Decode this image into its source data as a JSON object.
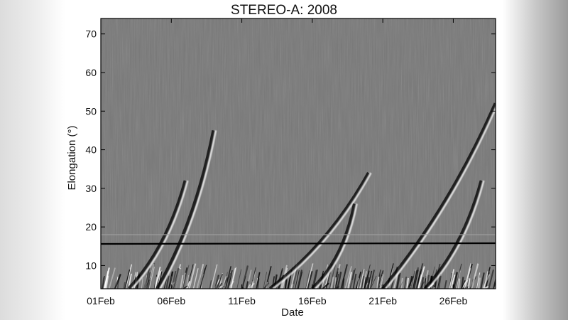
{
  "chart_data": {
    "type": "heatmap",
    "title": "STEREO-A: 2008",
    "xlabel": "Date",
    "ylabel": "Elongation (°)",
    "x_range": [
      "2008-02-01",
      "2008-02-29"
    ],
    "x_ticks": [
      {
        "date": "2008-02-01",
        "label": "01Feb"
      },
      {
        "date": "2008-02-06",
        "label": "06Feb"
      },
      {
        "date": "2008-02-11",
        "label": "11Feb"
      },
      {
        "date": "2008-02-16",
        "label": "16Feb"
      },
      {
        "date": "2008-02-21",
        "label": "21Feb"
      },
      {
        "date": "2008-02-26",
        "label": "26Feb"
      }
    ],
    "ylim": [
      4,
      74
    ],
    "y_ticks": [
      10,
      20,
      30,
      40,
      50,
      60,
      70
    ],
    "reference_line": {
      "elongation": 15.7,
      "color": "#000000"
    },
    "field_boundary_elongation": 18,
    "colormap": "grayscale",
    "colors": {
      "background": "#777777",
      "bright": "#ffffff",
      "dark": "#000000"
    },
    "tracks": [
      {
        "start_date": "2008-02-03",
        "end_date": "2008-02-07",
        "start_elongation": 4,
        "end_elongation": 32
      },
      {
        "start_date": "2008-02-05",
        "end_date": "2008-02-09",
        "start_elongation": 4,
        "end_elongation": 45
      },
      {
        "start_date": "2008-02-13",
        "end_date": "2008-02-20",
        "start_elongation": 4,
        "end_elongation": 34
      },
      {
        "start_date": "2008-02-16",
        "end_date": "2008-02-19",
        "start_elongation": 4,
        "end_elongation": 26
      },
      {
        "start_date": "2008-02-21",
        "end_date": "2008-02-29",
        "start_elongation": 4,
        "end_elongation": 52
      },
      {
        "start_date": "2008-02-24",
        "end_date": "2008-02-28",
        "start_elongation": 4,
        "end_elongation": 32
      }
    ]
  }
}
